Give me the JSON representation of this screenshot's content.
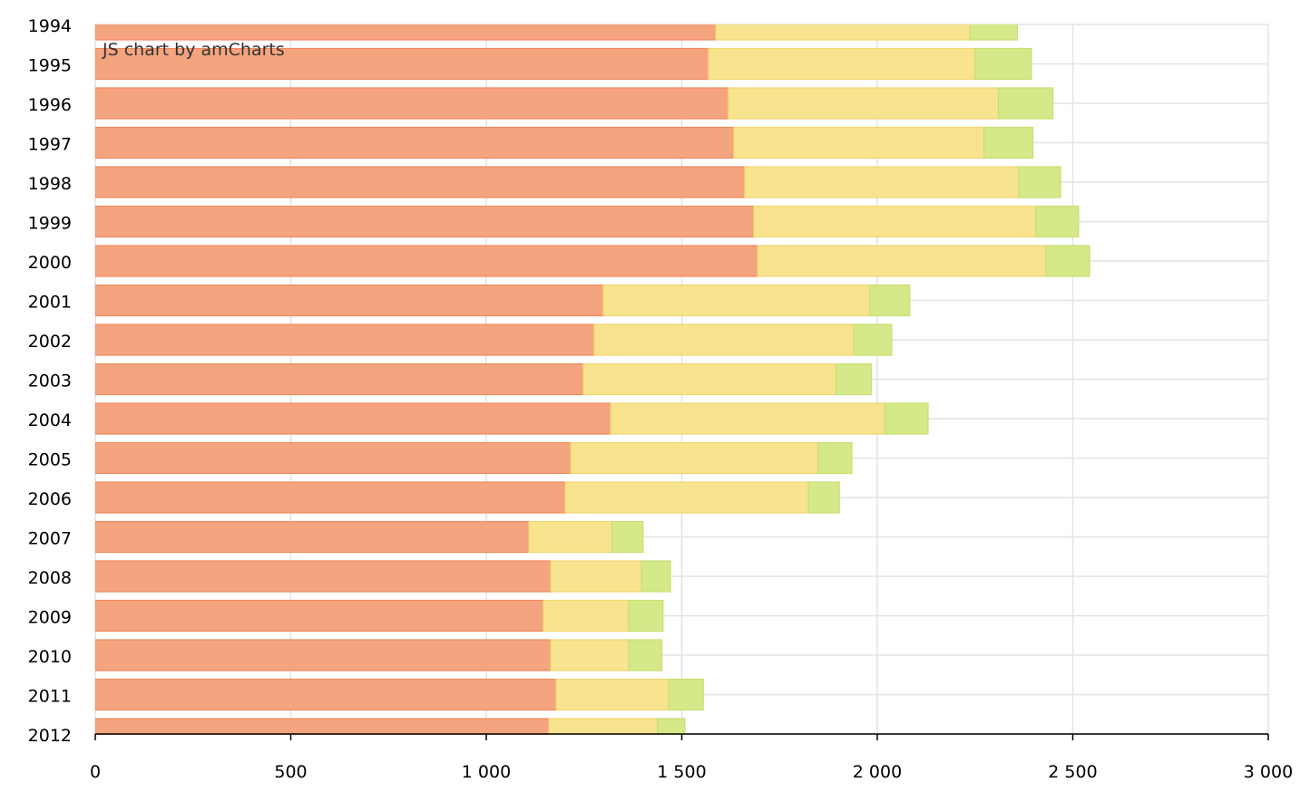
{
  "chart_data": {
    "type": "bar",
    "orientation": "horizontal",
    "stacked": true,
    "credit": "JS chart by amCharts",
    "categories": [
      "1994",
      "1995",
      "1996",
      "1997",
      "1998",
      "1999",
      "2000",
      "2001",
      "2002",
      "2003",
      "2004",
      "2005",
      "2006",
      "2007",
      "2008",
      "2009",
      "2010",
      "2011",
      "2012"
    ],
    "series": [
      {
        "color": "#f4a47f",
        "stroke": "#f08a60",
        "values": [
          1587,
          1568,
          1619,
          1633,
          1661,
          1684,
          1694,
          1299,
          1276,
          1248,
          1318,
          1216,
          1202,
          1109,
          1165,
          1146,
          1165,
          1179,
          1160
        ]
      },
      {
        "color": "#f8e38f",
        "stroke": "#f2d670",
        "values": [
          650,
          682,
          691,
          640,
          701,
          722,
          738,
          682,
          664,
          647,
          701,
          633,
          622,
          213,
          232,
          218,
          200,
          288,
          278
        ]
      },
      {
        "color": "#d5e98a",
        "stroke": "#c5e070",
        "values": [
          121,
          144,
          139,
          125,
          107,
          109,
          111,
          102,
          97,
          90,
          111,
          86,
          79,
          79,
          74,
          88,
          84,
          88,
          70
        ]
      }
    ],
    "xlim": [
      0,
      3000
    ],
    "xticks": [
      0,
      500,
      1000,
      1500,
      2000,
      2500,
      3000
    ],
    "xtick_labels": [
      "0",
      "500",
      "1 000",
      "1 500",
      "2 000",
      "2 500",
      "3 000"
    ],
    "grid": true
  }
}
